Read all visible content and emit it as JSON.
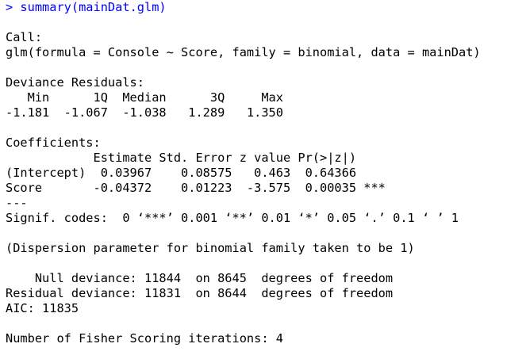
{
  "colors": {
    "background": "#ffffff",
    "command": "#0000ff",
    "output": "#000000"
  },
  "console": {
    "prompt": "> ",
    "command": "summary(mainDat.glm)",
    "output_lines": [
      "",
      "Call:",
      "glm(formula = Console ~ Score, family = binomial, data = mainDat)",
      "",
      "Deviance Residuals: ",
      "   Min      1Q  Median      3Q     Max  ",
      "-1.181  -1.067  -1.038   1.289   1.350  ",
      "",
      "Coefficients:",
      "            Estimate Std. Error z value Pr(>|z|)    ",
      "(Intercept)  0.03967    0.08575   0.463  0.64366    ",
      "Score       -0.04372    0.01223  -3.575  0.00035 ***",
      "---",
      "Signif. codes:  0 ‘***’ 0.001 ‘**’ 0.01 ‘*’ 0.05 ‘.’ 0.1 ‘ ’ 1",
      "",
      "(Dispersion parameter for binomial family taken to be 1)",
      "",
      "    Null deviance: 11844  on 8645  degrees of freedom",
      "Residual deviance: 11831  on 8644  degrees of freedom",
      "AIC: 11835",
      "",
      "Number of Fisher Scoring iterations: 4"
    ]
  }
}
